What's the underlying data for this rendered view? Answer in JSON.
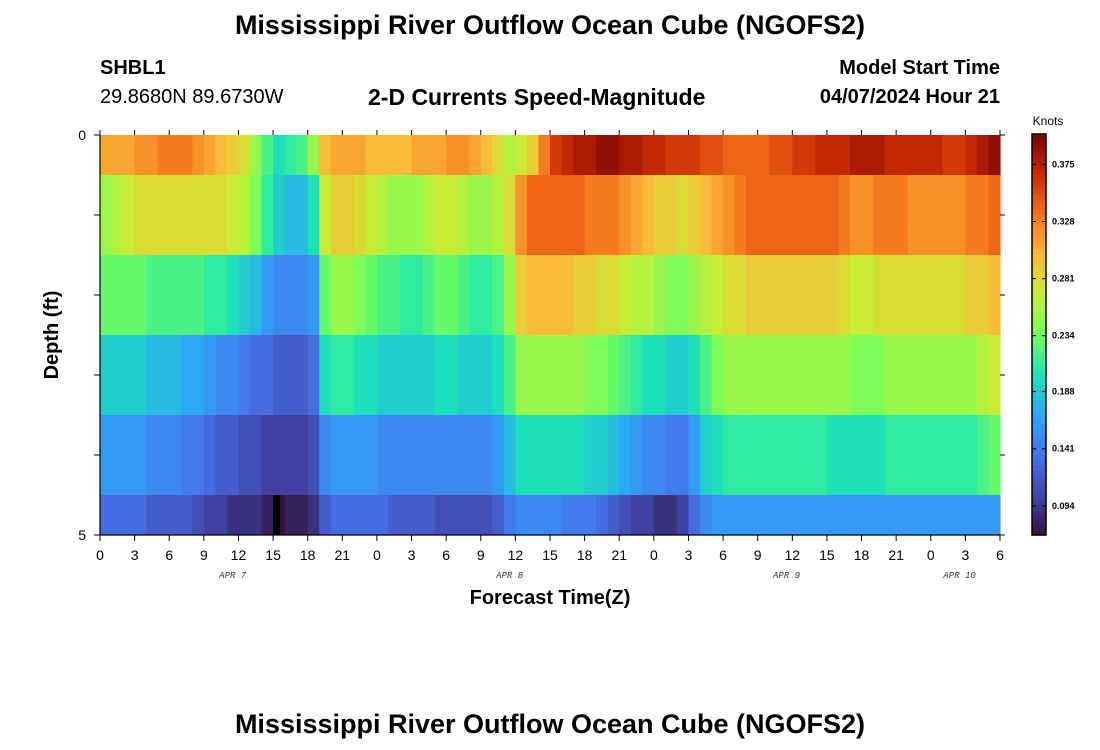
{
  "page": {
    "title": "Mississippi River Outflow Ocean Cube (NGOFS2)",
    "title_repeat": "Mississippi River Outflow Ocean Cube (NGOFS2)",
    "station": "SHBL1",
    "coordinates": "29.8680N  89.6730W",
    "plot_title": "2-D Currents Speed-Magnitude",
    "model_start_label": "Model Start Time",
    "model_start_value": "04/07/2024 Hour 21"
  },
  "chart_data": {
    "type": "heatmap",
    "title": "2-D Currents Speed-Magnitude",
    "xlabel": "Forecast Time(Z)",
    "ylabel": "Depth (ft)",
    "x_range_hours": [
      0,
      78
    ],
    "y_range": [
      0,
      5
    ],
    "y_tick_labels": [
      "0",
      "5"
    ],
    "x_tick_labels": [
      "0",
      "3",
      "6",
      "9",
      "12",
      "15",
      "18",
      "21",
      "0",
      "3",
      "6",
      "9",
      "12",
      "15",
      "18",
      "21",
      "0",
      "3",
      "6",
      "9",
      "12",
      "15",
      "18",
      "21",
      "0",
      "3",
      "6"
    ],
    "date_labels": [
      {
        "label": "APR 7",
        "hour": 11.5
      },
      {
        "label": "APR 8",
        "hour": 35.5
      },
      {
        "label": "APR 9",
        "hour": 59.5
      },
      {
        "label": "APR 10",
        "hour": 74.5
      }
    ],
    "colorbar": {
      "unit": "Knots",
      "min": 0.07,
      "max": 0.4,
      "ticks": [
        0.094,
        0.141,
        0.188,
        0.234,
        0.281,
        0.328,
        0.375
      ],
      "tick_labels": [
        "0.094",
        "0.141",
        "0.188",
        "0.234",
        "0.281",
        "0.328",
        "0.375"
      ]
    },
    "layers": [
      {
        "depth_range": [
          0,
          0.5
        ],
        "values": [
          0.31,
          0.31,
          0.31,
          0.32,
          0.32,
          0.33,
          0.33,
          0.33,
          0.32,
          0.31,
          0.3,
          0.29,
          0.28,
          0.25,
          0.22,
          0.2,
          0.21,
          0.22,
          0.25,
          0.3,
          0.31,
          0.31,
          0.31,
          0.3,
          0.3,
          0.3,
          0.3,
          0.31,
          0.31,
          0.31,
          0.32,
          0.32,
          0.31,
          0.3,
          0.28,
          0.26,
          0.27,
          0.29,
          0.33,
          0.36,
          0.37,
          0.38,
          0.38,
          0.39,
          0.39,
          0.38,
          0.38,
          0.37,
          0.37,
          0.36,
          0.36,
          0.36,
          0.35,
          0.35,
          0.34,
          0.34,
          0.34,
          0.34,
          0.35,
          0.35,
          0.36,
          0.36,
          0.37,
          0.37,
          0.37,
          0.38,
          0.38,
          0.38,
          0.37,
          0.37,
          0.37,
          0.37,
          0.37,
          0.36,
          0.36,
          0.37,
          0.38,
          0.39
        ]
      },
      {
        "depth_range": [
          0.5,
          1.5
        ],
        "values": [
          0.25,
          0.26,
          0.27,
          0.28,
          0.28,
          0.28,
          0.28,
          0.28,
          0.28,
          0.28,
          0.28,
          0.27,
          0.26,
          0.24,
          0.21,
          0.19,
          0.18,
          0.18,
          0.2,
          0.27,
          0.29,
          0.29,
          0.28,
          0.27,
          0.26,
          0.25,
          0.25,
          0.25,
          0.26,
          0.27,
          0.27,
          0.26,
          0.25,
          0.25,
          0.26,
          0.28,
          0.32,
          0.34,
          0.34,
          0.34,
          0.34,
          0.34,
          0.33,
          0.33,
          0.33,
          0.32,
          0.31,
          0.3,
          0.29,
          0.29,
          0.28,
          0.29,
          0.3,
          0.31,
          0.32,
          0.33,
          0.34,
          0.34,
          0.34,
          0.34,
          0.34,
          0.34,
          0.34,
          0.34,
          0.33,
          0.32,
          0.32,
          0.33,
          0.33,
          0.33,
          0.32,
          0.32,
          0.32,
          0.32,
          0.32,
          0.33,
          0.33,
          0.34
        ]
      },
      {
        "depth_range": [
          1.5,
          2.5
        ],
        "values": [
          0.23,
          0.23,
          0.23,
          0.23,
          0.22,
          0.22,
          0.22,
          0.22,
          0.22,
          0.21,
          0.21,
          0.2,
          0.19,
          0.18,
          0.16,
          0.15,
          0.15,
          0.15,
          0.16,
          0.23,
          0.25,
          0.25,
          0.24,
          0.23,
          0.22,
          0.22,
          0.21,
          0.21,
          0.22,
          0.23,
          0.23,
          0.22,
          0.21,
          0.21,
          0.22,
          0.25,
          0.29,
          0.3,
          0.3,
          0.3,
          0.3,
          0.29,
          0.29,
          0.28,
          0.28,
          0.27,
          0.26,
          0.26,
          0.25,
          0.24,
          0.24,
          0.25,
          0.26,
          0.27,
          0.28,
          0.28,
          0.29,
          0.29,
          0.29,
          0.29,
          0.29,
          0.29,
          0.29,
          0.29,
          0.28,
          0.27,
          0.27,
          0.28,
          0.28,
          0.28,
          0.28,
          0.28,
          0.28,
          0.28,
          0.28,
          0.29,
          0.29,
          0.3
        ]
      },
      {
        "depth_range": [
          2.5,
          3.5
        ],
        "values": [
          0.19,
          0.19,
          0.19,
          0.19,
          0.18,
          0.18,
          0.18,
          0.17,
          0.17,
          0.16,
          0.15,
          0.15,
          0.14,
          0.13,
          0.13,
          0.12,
          0.12,
          0.12,
          0.13,
          0.2,
          0.21,
          0.21,
          0.2,
          0.2,
          0.19,
          0.19,
          0.19,
          0.19,
          0.19,
          0.2,
          0.2,
          0.19,
          0.19,
          0.19,
          0.2,
          0.22,
          0.25,
          0.25,
          0.25,
          0.25,
          0.25,
          0.25,
          0.24,
          0.24,
          0.23,
          0.22,
          0.21,
          0.2,
          0.2,
          0.19,
          0.19,
          0.2,
          0.22,
          0.24,
          0.25,
          0.25,
          0.25,
          0.25,
          0.25,
          0.25,
          0.25,
          0.25,
          0.25,
          0.25,
          0.25,
          0.24,
          0.24,
          0.24,
          0.25,
          0.25,
          0.25,
          0.25,
          0.25,
          0.25,
          0.25,
          0.25,
          0.26,
          0.27
        ]
      },
      {
        "depth_range": [
          3.5,
          4.5
        ],
        "values": [
          0.16,
          0.16,
          0.16,
          0.16,
          0.15,
          0.15,
          0.15,
          0.14,
          0.14,
          0.13,
          0.12,
          0.12,
          0.11,
          0.11,
          0.1,
          0.1,
          0.1,
          0.1,
          0.11,
          0.15,
          0.16,
          0.16,
          0.16,
          0.16,
          0.15,
          0.15,
          0.15,
          0.15,
          0.15,
          0.15,
          0.15,
          0.15,
          0.15,
          0.15,
          0.16,
          0.18,
          0.2,
          0.2,
          0.2,
          0.2,
          0.2,
          0.2,
          0.19,
          0.19,
          0.18,
          0.17,
          0.16,
          0.15,
          0.15,
          0.14,
          0.14,
          0.16,
          0.19,
          0.2,
          0.21,
          0.21,
          0.21,
          0.21,
          0.21,
          0.21,
          0.21,
          0.21,
          0.21,
          0.2,
          0.2,
          0.2,
          0.2,
          0.2,
          0.21,
          0.21,
          0.21,
          0.21,
          0.21,
          0.21,
          0.21,
          0.21,
          0.22,
          0.23
        ]
      },
      {
        "depth_range": [
          4.5,
          5
        ],
        "values": [
          0.13,
          0.13,
          0.13,
          0.13,
          0.12,
          0.12,
          0.12,
          0.12,
          0.11,
          0.1,
          0.1,
          0.09,
          0.09,
          0.09,
          0.08,
          0.07,
          0.08,
          0.08,
          0.09,
          0.12,
          0.13,
          0.13,
          0.13,
          0.13,
          0.13,
          0.12,
          0.12,
          0.12,
          0.12,
          0.11,
          0.11,
          0.11,
          0.11,
          0.11,
          0.12,
          0.14,
          0.15,
          0.15,
          0.15,
          0.15,
          0.14,
          0.14,
          0.14,
          0.13,
          0.12,
          0.11,
          0.1,
          0.1,
          0.09,
          0.09,
          0.1,
          0.13,
          0.15,
          0.16,
          0.16,
          0.16,
          0.16,
          0.16,
          0.16,
          0.16,
          0.16,
          0.16,
          0.16,
          0.16,
          0.16,
          0.16,
          0.16,
          0.16,
          0.16,
          0.16,
          0.16,
          0.16,
          0.16,
          0.16,
          0.16,
          0.16,
          0.16,
          0.16
        ]
      }
    ],
    "marker": {
      "hour": 15.3,
      "depth_range": [
        4.5,
        5
      ],
      "color": "#000000"
    }
  }
}
